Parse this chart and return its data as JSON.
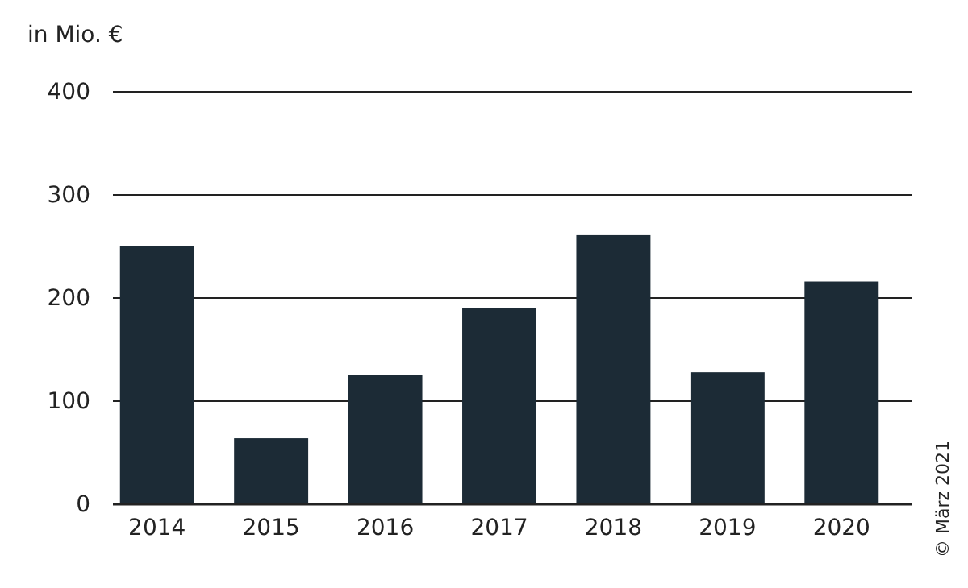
{
  "chart_data": {
    "type": "bar",
    "ylabel": "in Mio. €",
    "categories": [
      "2014",
      "2015",
      "2016",
      "2017",
      "2018",
      "2019",
      "2020"
    ],
    "values": [
      250,
      64,
      125,
      190,
      261,
      128,
      216
    ],
    "color": "#1c2b36",
    "ylim": [
      0,
      400
    ],
    "yticks": [
      0,
      100,
      200,
      300,
      400
    ],
    "grid": "y",
    "annotations": [
      "© März 2021"
    ]
  }
}
